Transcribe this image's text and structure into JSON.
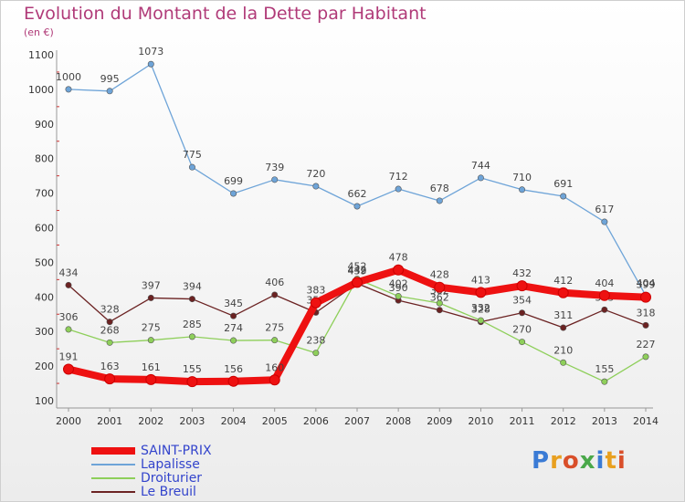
{
  "title": "Evolution du Montant de la Dette par Habitant",
  "subtitle": "(en €)",
  "logo": "Proxiti",
  "chart_data": {
    "type": "line",
    "title": "Evolution du Montant de la Dette par Habitant",
    "subtitle": "(en €)",
    "x": [
      2000,
      2001,
      2002,
      2003,
      2004,
      2005,
      2006,
      2007,
      2008,
      2009,
      2010,
      2011,
      2012,
      2013,
      2014
    ],
    "ylim": [
      100,
      1100
    ],
    "yticks": [
      100,
      200,
      300,
      400,
      500,
      600,
      700,
      800,
      900,
      1000,
      1100
    ],
    "grid": false,
    "legend_position": "bottom-left",
    "series": [
      {
        "name": "Lapalisse",
        "color": "#6ea4d8",
        "values": [
          1000,
          995,
          1073,
          775,
          699,
          739,
          720,
          662,
          712,
          678,
          744,
          710,
          691,
          617,
          404
        ]
      },
      {
        "name": "Le Breuil",
        "color": "#6b2222",
        "values": [
          434,
          328,
          397,
          394,
          345,
          406,
          355,
          439,
          390,
          362,
          328,
          354,
          311,
          363,
          318
        ]
      },
      {
        "name": "Droiturier",
        "color": "#8ecf5a",
        "values": [
          306,
          268,
          275,
          285,
          274,
          275,
          238,
          452,
          402,
          382,
          332,
          270,
          210,
          155,
          227
        ]
      },
      {
        "name": "SAINT-PRIX",
        "color": "#ee1111",
        "values": [
          191,
          163,
          161,
          155,
          156,
          160,
          383,
          442,
          478,
          428,
          413,
          432,
          412,
          404,
          399
        ]
      }
    ],
    "legend": [
      "SAINT-PRIX",
      "Lapalisse",
      "Droiturier",
      "Le Breuil"
    ]
  }
}
